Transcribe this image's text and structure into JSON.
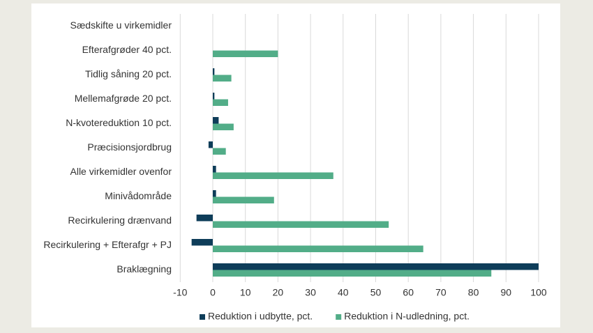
{
  "chart_data": {
    "type": "hbar",
    "categories": [
      "Sædskifte u virkemidler",
      "Efterafgrøder 40 pct.",
      "Tidlig såning 20 pct.",
      "Mellemafgrøde 20 pct.",
      "N-kvotereduktion 10 pct.",
      "Præcisionsjordbrug",
      "Alle virkemidler ovenfor",
      "Minivådområde",
      "Recirkulering drænvand",
      "Recirkulering + Efterafgr + PJ",
      "Braklægning"
    ],
    "series": [
      {
        "name": "Reduktion i udbytte, pct.",
        "color": "#0e3d59",
        "values": [
          0,
          0,
          0.5,
          0.5,
          1.8,
          -1.3,
          1,
          1,
          -5,
          -6.5,
          100
        ]
      },
      {
        "name": "Reduktion i N-udledning, pct.",
        "color": "#52ad88",
        "values": [
          0,
          20,
          5.7,
          4.7,
          6.4,
          4,
          37,
          18.8,
          54,
          64.6,
          85.5
        ]
      }
    ],
    "xlim": [
      -10,
      100
    ],
    "xticks": [
      -10,
      0,
      10,
      20,
      30,
      40,
      50,
      60,
      70,
      80,
      90,
      100
    ],
    "grid": true,
    "legend": "bottom"
  }
}
